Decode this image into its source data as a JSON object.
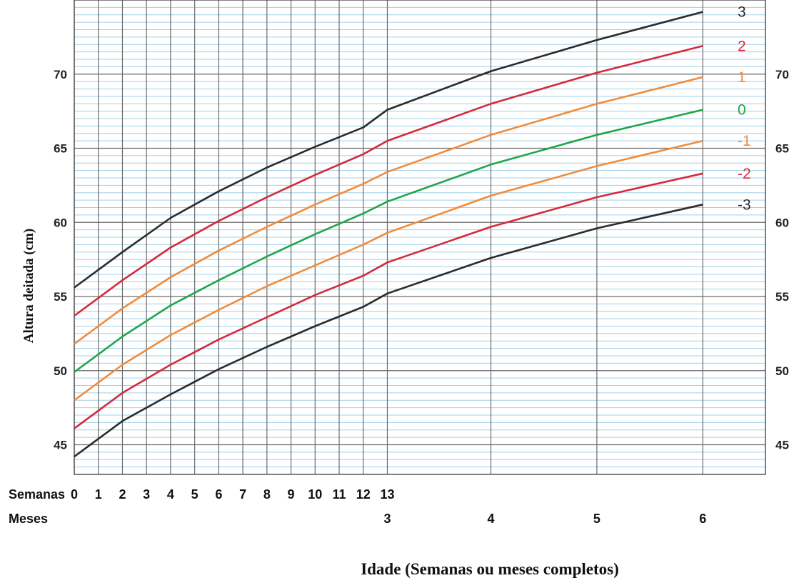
{
  "chart_data": {
    "type": "line",
    "title": "",
    "ylabel": "Altura deitada (cm)",
    "xlabel": "Idade (Semanas ou meses completos)",
    "ylim": [
      43,
      75
    ],
    "y_ticks": [
      "45",
      "50",
      "55",
      "60",
      "65",
      "70"
    ],
    "x_rows": {
      "weeks_label": "Semanas",
      "weeks": [
        "0",
        "1",
        "2",
        "3",
        "4",
        "5",
        "6",
        "7",
        "8",
        "9",
        "10",
        "11",
        "12",
        "13"
      ],
      "months_label": "Meses",
      "months": [
        "3",
        "4",
        "5",
        "6"
      ]
    },
    "x_positions_weeks": [
      0,
      1,
      2,
      3,
      4,
      5,
      6,
      7,
      8,
      9,
      10,
      11,
      12,
      13,
      17.3,
      21.7,
      26.1
    ],
    "series": [
      {
        "name": "3",
        "color": "#2b2b2b",
        "values": [
          55.6,
          58.0,
          60.3,
          62.1,
          63.7,
          65.1,
          66.4,
          67.6,
          70.2,
          72.3,
          74.2
        ]
      },
      {
        "name": "2",
        "color": "#d42a3c",
        "values": [
          53.7,
          56.1,
          58.3,
          60.1,
          61.7,
          63.2,
          64.6,
          65.5,
          68.0,
          70.1,
          71.9
        ]
      },
      {
        "name": "1",
        "color": "#f08c3c",
        "values": [
          51.8,
          54.2,
          56.3,
          58.1,
          59.7,
          61.2,
          62.6,
          63.4,
          65.9,
          68.0,
          69.8
        ]
      },
      {
        "name": "0",
        "color": "#1fa64a",
        "values": [
          49.9,
          52.3,
          54.4,
          56.1,
          57.7,
          59.2,
          60.6,
          61.4,
          63.9,
          65.9,
          67.6
        ]
      },
      {
        "name": "-1",
        "color": "#f08c3c",
        "values": [
          48.0,
          50.4,
          52.4,
          54.1,
          55.7,
          57.1,
          58.5,
          59.3,
          61.8,
          63.8,
          65.5
        ]
      },
      {
        "name": "-2",
        "color": "#d42a3c",
        "values": [
          46.1,
          48.5,
          50.4,
          52.1,
          53.6,
          55.1,
          56.4,
          57.3,
          59.7,
          61.7,
          63.3
        ]
      },
      {
        "name": "-3",
        "color": "#2b2b2b",
        "values": [
          44.2,
          46.6,
          48.4,
          50.1,
          51.6,
          53.0,
          54.3,
          55.2,
          57.6,
          59.6,
          61.2
        ]
      }
    ],
    "series_x_weeks": [
      0,
      2,
      4,
      6,
      8,
      10,
      12,
      13,
      17.3,
      21.7,
      26.1
    ],
    "grid": true,
    "colors": {
      "minor_grid": "#9fd0ea",
      "major_grid": "#6b6b6b",
      "border": "#555555"
    }
  }
}
